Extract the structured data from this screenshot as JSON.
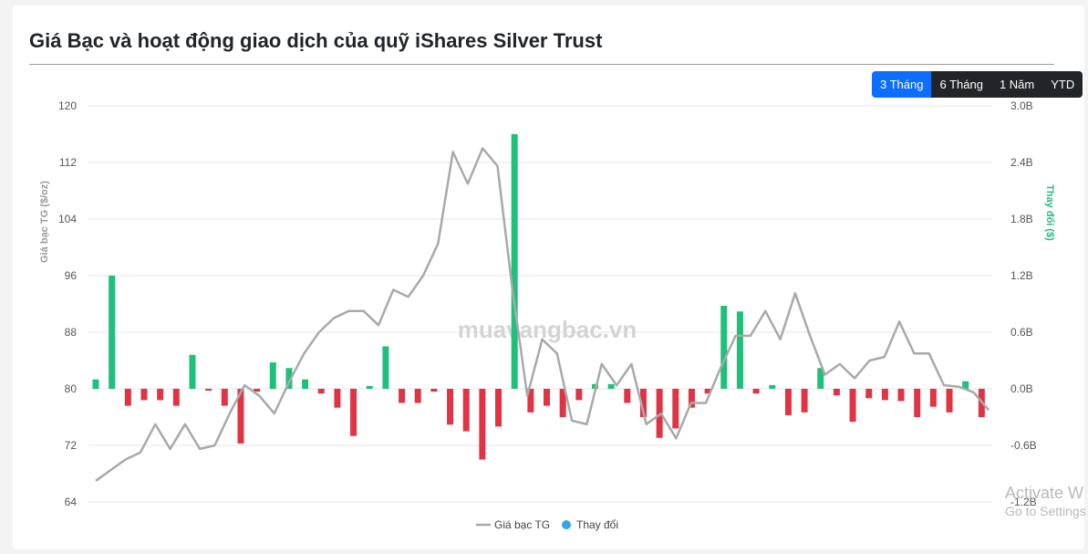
{
  "title": "Giá Bạc và hoạt động giao dịch của quỹ iShares Silver Trust",
  "range_tabs": [
    {
      "label": "3 Tháng",
      "active": true
    },
    {
      "label": "6 Tháng",
      "active": false
    },
    {
      "label": "1 Năm",
      "active": false
    },
    {
      "label": "YTD",
      "active": false
    }
  ],
  "watermark": "muavangbac.vn",
  "os_overlay": {
    "line1": "Activate W",
    "line2": "Go to Settings"
  },
  "colors": {
    "price_line": "#a9a9a9",
    "positive_bar": "#1fbf7c",
    "negative_bar": "#e03445",
    "legend_change": "#2ea8e8",
    "right_axis_label": "#1fbf7c",
    "grid": "#e6e6e6"
  },
  "chart_data": {
    "type": "bar+line",
    "left_axis": {
      "label": "Giá bạc TG ($/oz)",
      "min": 64,
      "max": 120,
      "ticks": [
        "120",
        "112",
        "104",
        "96",
        "88",
        "80",
        "72",
        "64"
      ]
    },
    "right_axis": {
      "label": "Thay đổi ($)",
      "min": -1.2,
      "max": 3.0,
      "ticks": [
        "3.0B",
        "2.4B",
        "1.8B",
        "1.2B",
        "0.6B",
        "0.0B",
        "-0.6B",
        "-1.2B"
      ]
    },
    "grid": true,
    "legend": {
      "placement": "bottom-center",
      "items": [
        "Giá bạc TG",
        "Thay đổi"
      ]
    },
    "series": [
      {
        "name": "Giá bạc TG",
        "kind": "line",
        "values": [
          67,
          68.5,
          70,
          71,
          75,
          71.5,
          75,
          71.5,
          72,
          76.5,
          80.5,
          79,
          76.5,
          81,
          85,
          88,
          90,
          91,
          91,
          89,
          94,
          93,
          96,
          100.5,
          113.5,
          109,
          114,
          111.5,
          94,
          79,
          87,
          85,
          75.5,
          75,
          83.5,
          80.5,
          83.5,
          75,
          76.5,
          73,
          78,
          78,
          83,
          87.5,
          87.5,
          91,
          87,
          93.5,
          87.5,
          82,
          83.5,
          81.5,
          84,
          84.5,
          89.5,
          85,
          85,
          80.5,
          80.3,
          79.5,
          77
        ]
      },
      {
        "name": "Thay đổi",
        "kind": "bar",
        "values": [
          0.1,
          1.2,
          -0.18,
          -0.12,
          -0.12,
          -0.18,
          0.36,
          -0.02,
          -0.18,
          -0.58,
          -0.03,
          0.28,
          0.22,
          0.1,
          -0.05,
          -0.2,
          -0.5,
          0.03,
          0.45,
          -0.15,
          -0.15,
          -0.03,
          -0.38,
          -0.45,
          -0.75,
          -0.4,
          2.7,
          -0.25,
          -0.18,
          -0.3,
          -0.12,
          0.05,
          0.05,
          -0.15,
          -0.3,
          -0.52,
          -0.42,
          -0.2,
          -0.05,
          0.88,
          0.82,
          -0.05,
          0.04,
          -0.28,
          -0.25,
          0.22,
          -0.07,
          -0.35,
          -0.1,
          -0.12,
          -0.13,
          -0.3,
          -0.19,
          -0.25,
          0.08,
          -0.3
        ]
      }
    ]
  }
}
